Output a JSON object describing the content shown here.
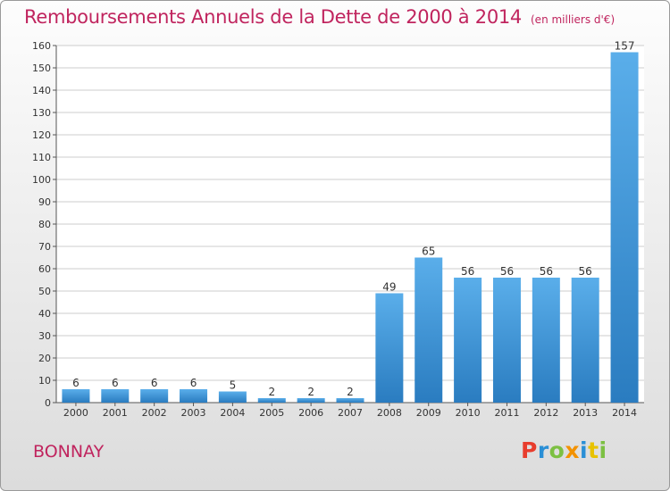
{
  "header": {
    "title": "Remboursements Annuels de la Dette de 2000 à 2014",
    "subtitle": "(en milliers d'€)"
  },
  "footer": {
    "commune": "BONNAY",
    "logo": "Proxiti"
  },
  "colors": {
    "title": "#c0245e",
    "bar_top": "#5aaeea",
    "bar_bottom": "#2a7cc0",
    "grid": "#cccccc",
    "logo_letters": [
      "#e83d2d",
      "#2a8fd6",
      "#7cc042",
      "#f39200",
      "#2a8fd6",
      "#e8c200",
      "#7cc042"
    ]
  },
  "chart_data": {
    "type": "bar",
    "categories": [
      "2000",
      "2001",
      "2002",
      "2003",
      "2004",
      "2005",
      "2006",
      "2007",
      "2008",
      "2009",
      "2010",
      "2011",
      "2012",
      "2013",
      "2014"
    ],
    "values": [
      6,
      6,
      6,
      6,
      5,
      2,
      2,
      2,
      49,
      65,
      56,
      56,
      56,
      56,
      157
    ],
    "data_labels": [
      "6",
      "6",
      "6",
      "6",
      "5",
      "2",
      "2",
      "2",
      "49",
      "65",
      "56",
      "56",
      "56",
      "56",
      "157"
    ],
    "title": "Remboursements Annuels de la Dette de 2000 à 2014",
    "xlabel": "",
    "ylabel": "",
    "ylim": [
      0,
      160
    ],
    "yticks": [
      "0",
      "10",
      "20",
      "30",
      "40",
      "50",
      "60",
      "70",
      "80",
      "90",
      "100",
      "110",
      "120",
      "130",
      "140",
      "150",
      "160"
    ],
    "grid": true
  }
}
